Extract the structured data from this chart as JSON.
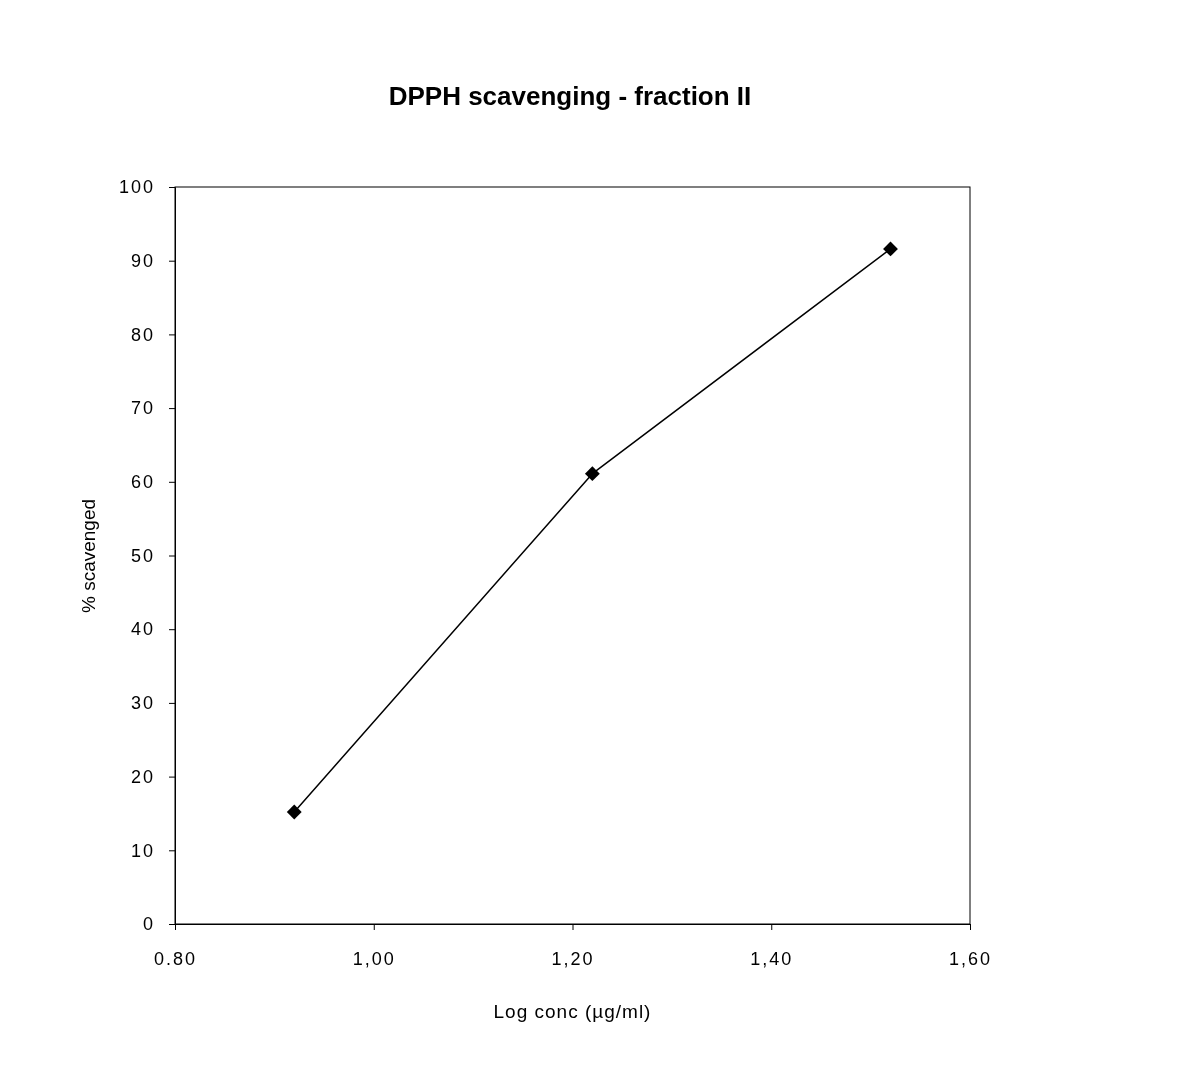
{
  "chart_data": {
    "type": "line",
    "title": "DPPH scavenging - fraction II",
    "xlabel": "Log conc (µg/ml)",
    "ylabel": "% scavenged",
    "x": [
      0.92,
      1.22,
      1.52
    ],
    "series": [
      {
        "color": "#000000",
        "values": [
          15.2,
          61.1,
          91.6
        ]
      }
    ],
    "xlim": [
      0.8,
      1.6
    ],
    "xticks": [
      {
        "value": 0.8,
        "label": "0.80"
      },
      {
        "value": 1.0,
        "label": "1,00"
      },
      {
        "value": 1.2,
        "label": "1,20"
      },
      {
        "value": 1.4,
        "label": "1,40"
      },
      {
        "value": 1.6,
        "label": "1,60"
      }
    ],
    "ylim": [
      0,
      100
    ],
    "yticks": [
      0,
      10,
      20,
      30,
      40,
      50,
      60,
      70,
      80,
      90,
      100
    ],
    "marker": "diamond",
    "line_style": "solid",
    "grid": false
  }
}
